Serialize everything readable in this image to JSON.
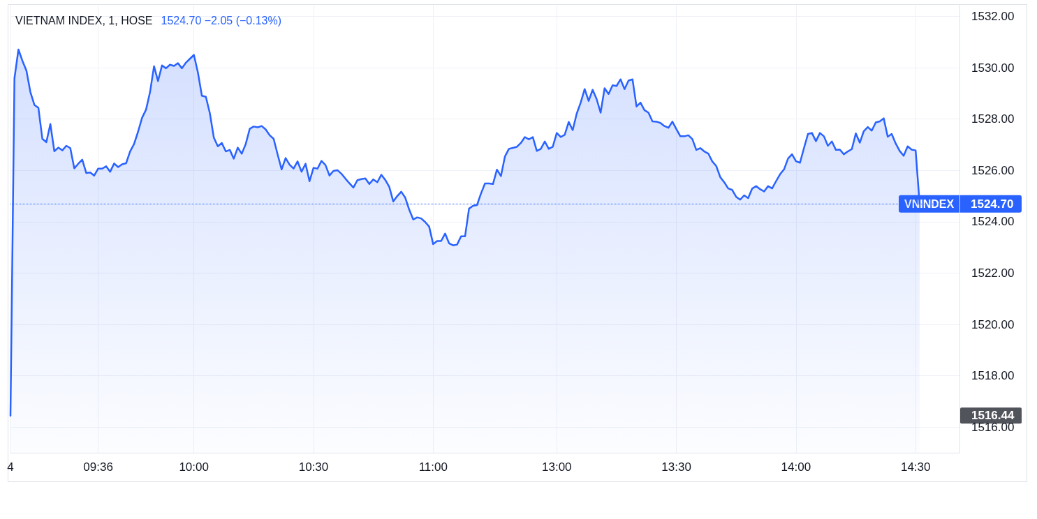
{
  "chart_data": {
    "type": "area",
    "title": "VIETNAM INDEX, 1, HOSE",
    "subtitle": "1524.70 −2.05 (−0.13%)",
    "categories": [
      "4",
      null,
      null,
      null,
      null,
      null,
      null,
      null,
      null,
      null,
      null,
      null,
      null,
      null,
      null,
      null,
      null,
      null,
      null,
      null,
      null,
      null,
      "09:36",
      null,
      null,
      null,
      null,
      null,
      null,
      null,
      null,
      null,
      null,
      null,
      null,
      null,
      null,
      null,
      null,
      null,
      null,
      null,
      null,
      null,
      null,
      null,
      "10:00",
      null,
      null,
      null,
      null,
      null,
      null,
      null,
      null,
      null,
      null,
      null,
      null,
      null,
      null,
      null,
      null,
      null,
      null,
      null,
      null,
      null,
      null,
      null,
      null,
      null,
      null,
      null,
      null,
      null,
      "10:30",
      null,
      null,
      null,
      null,
      null,
      null,
      null,
      null,
      null,
      null,
      null,
      null,
      null,
      null,
      null,
      null,
      null,
      null,
      null,
      null,
      null,
      null,
      null,
      null,
      null,
      null,
      null,
      null,
      null,
      "11:00",
      null,
      null,
      null,
      null,
      null,
      null,
      null,
      null,
      null,
      null,
      null,
      null,
      null,
      null,
      null,
      null,
      null,
      null,
      null,
      null,
      null,
      null,
      null,
      null,
      null,
      null,
      null,
      null,
      null,
      null,
      "13:00",
      null,
      null,
      null,
      null,
      null,
      null,
      null,
      null,
      null,
      null,
      null,
      null,
      null,
      null,
      null,
      null,
      null,
      null,
      null,
      null,
      null,
      null,
      null,
      null,
      null,
      null,
      null,
      null,
      null,
      "13:30",
      null,
      null,
      null,
      null,
      null,
      null,
      null,
      null,
      null,
      null,
      null,
      null,
      null,
      null,
      null,
      null,
      null,
      null,
      null,
      null,
      null,
      null,
      null,
      null,
      null,
      null,
      null,
      null,
      null,
      "14:00",
      null,
      null,
      null,
      null,
      null,
      null,
      null,
      null,
      null,
      null,
      null,
      null,
      null,
      null,
      null,
      null,
      null,
      null,
      null,
      null,
      null,
      null,
      null,
      null,
      null,
      null,
      null,
      null,
      null,
      "14:30",
      null
    ],
    "series": [
      {
        "name": "VNINDEX",
        "color": "#2962ff",
        "values": [
          1516.44,
          1529.59,
          1530.71,
          1530.27,
          1529.89,
          1529.05,
          1528.55,
          1528.44,
          1527.23,
          1527.1,
          1527.81,
          1526.75,
          1526.89,
          1526.78,
          1526.96,
          1526.87,
          1526.08,
          1526.26,
          1526.42,
          1525.9,
          1525.92,
          1525.8,
          1526.07,
          1526.07,
          1526.16,
          1525.95,
          1526.27,
          1526.13,
          1526.24,
          1526.28,
          1526.74,
          1527.03,
          1527.51,
          1528.05,
          1528.37,
          1529.05,
          1530.06,
          1529.48,
          1530.09,
          1529.98,
          1530.12,
          1530.07,
          1530.18,
          1529.98,
          1530.2,
          1530.35,
          1530.5,
          1529.82,
          1528.91,
          1528.87,
          1528.23,
          1527.28,
          1526.94,
          1527.07,
          1526.74,
          1526.8,
          1526.46,
          1526.89,
          1526.65,
          1527.03,
          1527.62,
          1527.71,
          1527.68,
          1527.73,
          1527.6,
          1527.37,
          1527.23,
          1526.62,
          1526.04,
          1526.48,
          1526.22,
          1526.07,
          1526.35,
          1525.95,
          1526.26,
          1525.58,
          1526.1,
          1526.07,
          1526.37,
          1526.21,
          1525.8,
          1525.98,
          1526.01,
          1525.87,
          1525.68,
          1525.5,
          1525.33,
          1525.62,
          1525.66,
          1525.69,
          1525.47,
          1525.65,
          1525.54,
          1525.83,
          1525.63,
          1525.36,
          1524.79,
          1525.0,
          1525.17,
          1524.94,
          1524.47,
          1524.09,
          1524.17,
          1524.13,
          1523.99,
          1523.81,
          1523.13,
          1523.25,
          1523.25,
          1523.54,
          1523.16,
          1523.08,
          1523.11,
          1523.43,
          1523.43,
          1524.51,
          1524.62,
          1524.65,
          1525.1,
          1525.49,
          1525.49,
          1525.47,
          1526.03,
          1525.78,
          1526.54,
          1526.84,
          1526.88,
          1526.92,
          1527.07,
          1527.3,
          1527.21,
          1527.3,
          1526.76,
          1526.84,
          1527.13,
          1526.84,
          1526.92,
          1527.46,
          1527.3,
          1527.39,
          1527.89,
          1527.57,
          1528.21,
          1528.64,
          1529.17,
          1528.71,
          1529.14,
          1528.78,
          1528.25,
          1529.2,
          1528.98,
          1529.32,
          1529.29,
          1529.55,
          1529.17,
          1529.5,
          1529.55,
          1528.49,
          1528.64,
          1528.35,
          1528.25,
          1527.91,
          1527.9,
          1527.85,
          1527.73,
          1527.66,
          1527.9,
          1527.61,
          1527.33,
          1527.33,
          1527.37,
          1527.22,
          1526.8,
          1526.87,
          1526.74,
          1526.66,
          1526.35,
          1526.17,
          1525.74,
          1525.54,
          1525.3,
          1525.24,
          1524.97,
          1524.86,
          1525.03,
          1524.92,
          1525.29,
          1525.39,
          1525.27,
          1525.18,
          1525.39,
          1525.3,
          1525.58,
          1525.85,
          1526.04,
          1526.46,
          1526.63,
          1526.36,
          1526.3,
          1526.87,
          1527.42,
          1527.46,
          1527.14,
          1527.46,
          1527.33,
          1526.96,
          1527.13,
          1526.8,
          1526.81,
          1526.63,
          1526.74,
          1526.83,
          1527.44,
          1527.08,
          1527.53,
          1527.69,
          1527.55,
          1527.87,
          1527.91,
          1528.03,
          1527.31,
          1527.42,
          1527.05,
          1526.76,
          1526.57,
          1526.94,
          1526.81,
          1526.78,
          1524.7
        ]
      }
    ],
    "ylim": [
      1515,
      1532.45
    ],
    "yticks": [
      {
        "value": 1516,
        "label": "1516.00"
      },
      {
        "value": 1518,
        "label": "1518.00"
      },
      {
        "value": 1520,
        "label": "1520.00"
      },
      {
        "value": 1522,
        "label": "1522.00"
      },
      {
        "value": 1524,
        "label": "1524.00"
      },
      {
        "value": 1526,
        "label": "1526.00"
      },
      {
        "value": 1528,
        "label": "1528.00"
      },
      {
        "value": 1530,
        "label": "1530.00"
      },
      {
        "value": 1532,
        "label": "1532.00"
      }
    ],
    "grid": true,
    "ref_lines": [
      {
        "axis": "y",
        "value": 1524.7,
        "label": "1524.70",
        "color": "#2962ff",
        "line_style": "dotted"
      }
    ],
    "annotations": [
      "1516.44"
    ]
  }
}
